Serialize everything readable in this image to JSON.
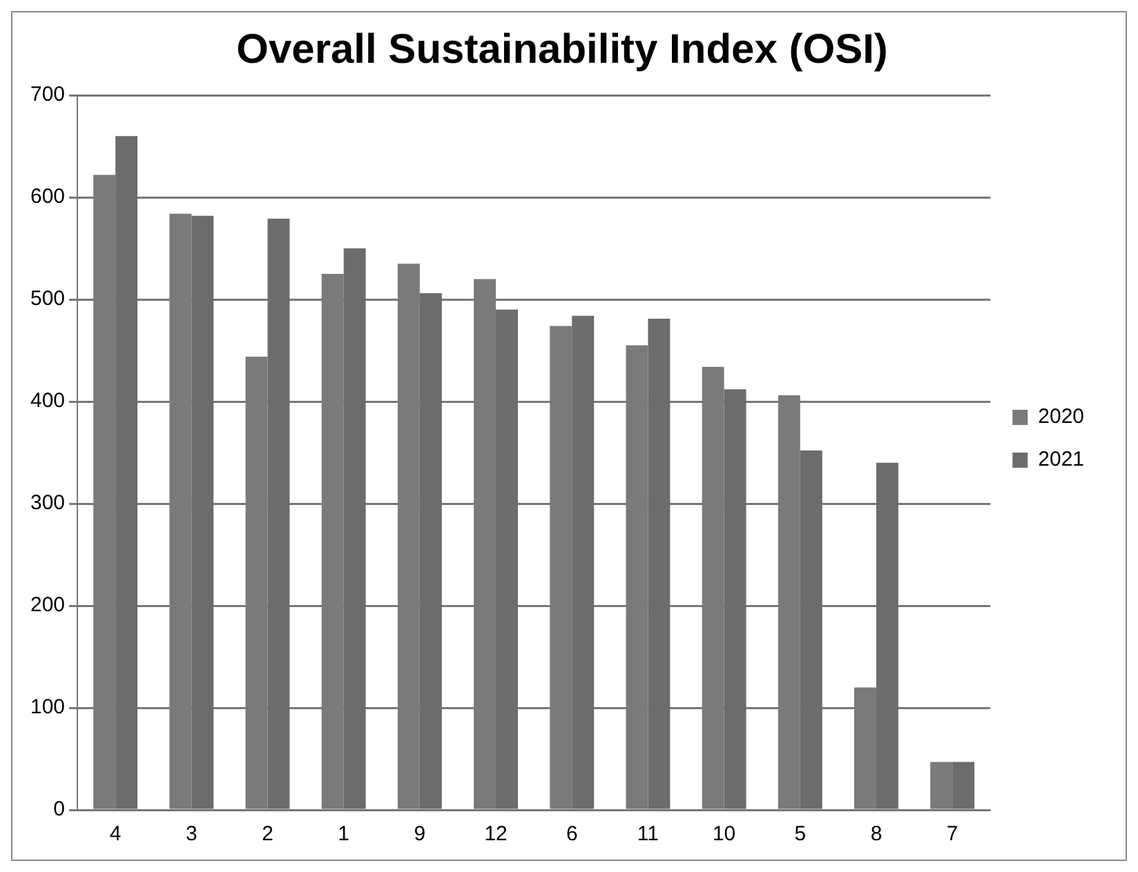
{
  "chart_data": {
    "type": "bar",
    "title": "Overall Sustainability Index (OSI)",
    "categories": [
      "4",
      "3",
      "2",
      "1",
      "9",
      "12",
      "6",
      "11",
      "10",
      "5",
      "8",
      "7"
    ],
    "series": [
      {
        "name": "2020",
        "color": "#7a7a7a",
        "values": [
          622,
          584,
          444,
          525,
          535,
          520,
          474,
          455,
          434,
          406,
          120,
          47
        ]
      },
      {
        "name": "2021",
        "color": "#6c6c6c",
        "values": [
          660,
          582,
          579,
          550,
          506,
          490,
          484,
          481,
          412,
          352,
          340,
          47
        ]
      }
    ],
    "ylim": [
      0,
      700
    ],
    "yticks": [
      0,
      100,
      200,
      300,
      400,
      500,
      600,
      700
    ],
    "grid": "y",
    "legend": "right"
  }
}
